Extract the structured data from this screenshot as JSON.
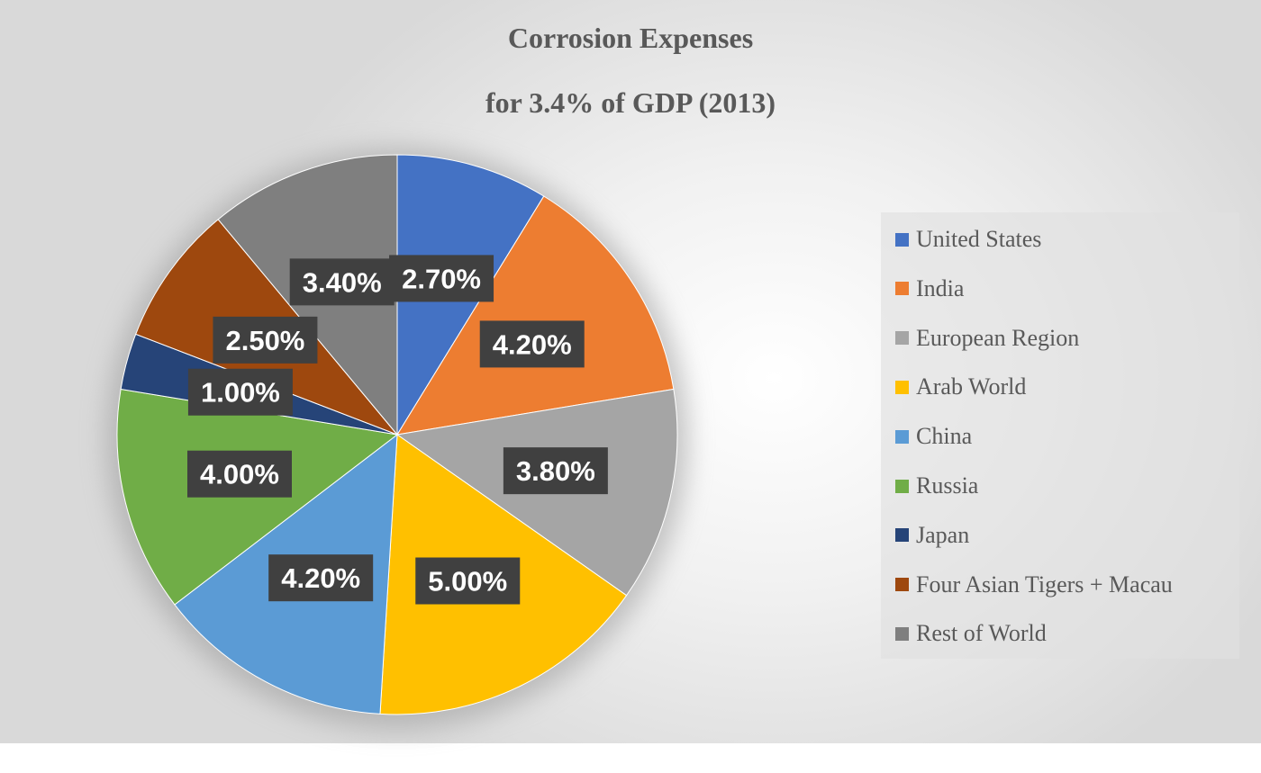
{
  "chart_data": {
    "type": "pie",
    "title": "Corrosion Expenses",
    "subtitle": "for 3.4% of GDP (2013)",
    "categories": [
      "United States",
      "India",
      "European Region",
      "Arab World",
      "China",
      "Russia",
      "Japan",
      "Four Asian Tigers + Macau",
      "Rest of World"
    ],
    "values": [
      2.7,
      4.2,
      3.8,
      5.0,
      4.2,
      4.0,
      1.0,
      2.5,
      3.4
    ],
    "labels": [
      "2.70%",
      "4.20%",
      "3.80%",
      "5.00%",
      "4.20%",
      "4.00%",
      "1.00%",
      "2.50%",
      "3.40%"
    ],
    "colors": [
      "#4472C4",
      "#ED7D31",
      "#A5A5A5",
      "#FFC000",
      "#5B9BD5",
      "#70AD47",
      "#264478",
      "#9E480E",
      "#7F7F7F"
    ],
    "legend_position": "right"
  }
}
